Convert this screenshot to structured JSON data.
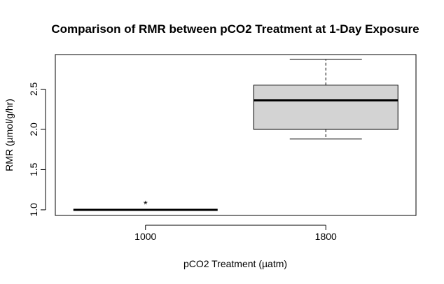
{
  "chart_data": {
    "type": "box",
    "title": "Comparison of RMR between pCO2 Treatment at 1-Day Exposure",
    "xlabel": "pCO2 Treatment (µatm)",
    "ylabel": "RMR (µmol/g/hr)",
    "ylim": [
      0.93,
      2.93
    ],
    "yticks": [
      "1.0",
      "1.5",
      "2.0",
      "2.5"
    ],
    "ytick_values": [
      1.0,
      1.5,
      2.0,
      2.5
    ],
    "box_fill": "#d3d3d3",
    "categories": [
      "1000",
      "1800"
    ],
    "boxes": [
      {
        "category": "1000",
        "min": 1.0,
        "q1": 1.0,
        "median": 1.0,
        "q3": 1.0,
        "max": 1.0,
        "annotation": "*"
      },
      {
        "category": "1800",
        "min": 1.88,
        "q1": 2.0,
        "median": 2.36,
        "q3": 2.55,
        "max": 2.87,
        "annotation": ""
      }
    ]
  }
}
